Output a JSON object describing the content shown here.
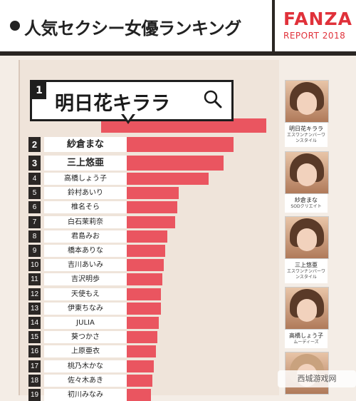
{
  "header": {
    "title": "人気セクシー女優ランキング",
    "brand": "FANZA",
    "brand_sub": "REPORT 2018"
  },
  "callout": {
    "rank": "1",
    "name": "明日花キララ",
    "icon": "search-icon"
  },
  "colors": {
    "bar": "#ea5560",
    "brand": "#e0313a",
    "dark": "#2b2725"
  },
  "chart_data": {
    "type": "bar",
    "orientation": "horizontal",
    "categories": [
      "明日花キララ",
      "紗倉まな",
      "三上悠亜",
      "高橋しょう子",
      "鈴村あいり",
      "椎名そら",
      "白石茉莉奈",
      "君島みお",
      "橋本ありな",
      "吉川あいみ",
      "吉沢明歩",
      "天使もえ",
      "伊東ちなみ",
      "JULIA",
      "葵つかさ",
      "上原亜衣",
      "桃乃木かな",
      "佐々木あき",
      "初川みなみ"
    ],
    "ranks": [
      "1",
      "2",
      "3",
      "4",
      "5",
      "6",
      "7",
      "8",
      "9",
      "10",
      "11",
      "12",
      "13",
      "14",
      "15",
      "16",
      "17",
      "18",
      "19"
    ],
    "values": [
      100,
      80,
      74,
      65,
      47,
      46,
      45,
      40,
      39,
      38,
      37,
      36,
      36,
      35,
      34,
      33,
      32,
      31,
      30
    ],
    "title": "人気セクシー女優ランキング",
    "xlabel": "",
    "ylabel": ""
  },
  "portraits": [
    {
      "name": "明日花キララ",
      "label": "エスワンナンバーワンスタイル"
    },
    {
      "name": "紗倉まな",
      "label": "SODクリエイト"
    },
    {
      "name": "三上悠亜",
      "label": "エスワンナンバーワンスタイル"
    },
    {
      "name": "高橋しょう子",
      "label": "ムーディーズ"
    }
  ],
  "watermark": "西城游戏网"
}
